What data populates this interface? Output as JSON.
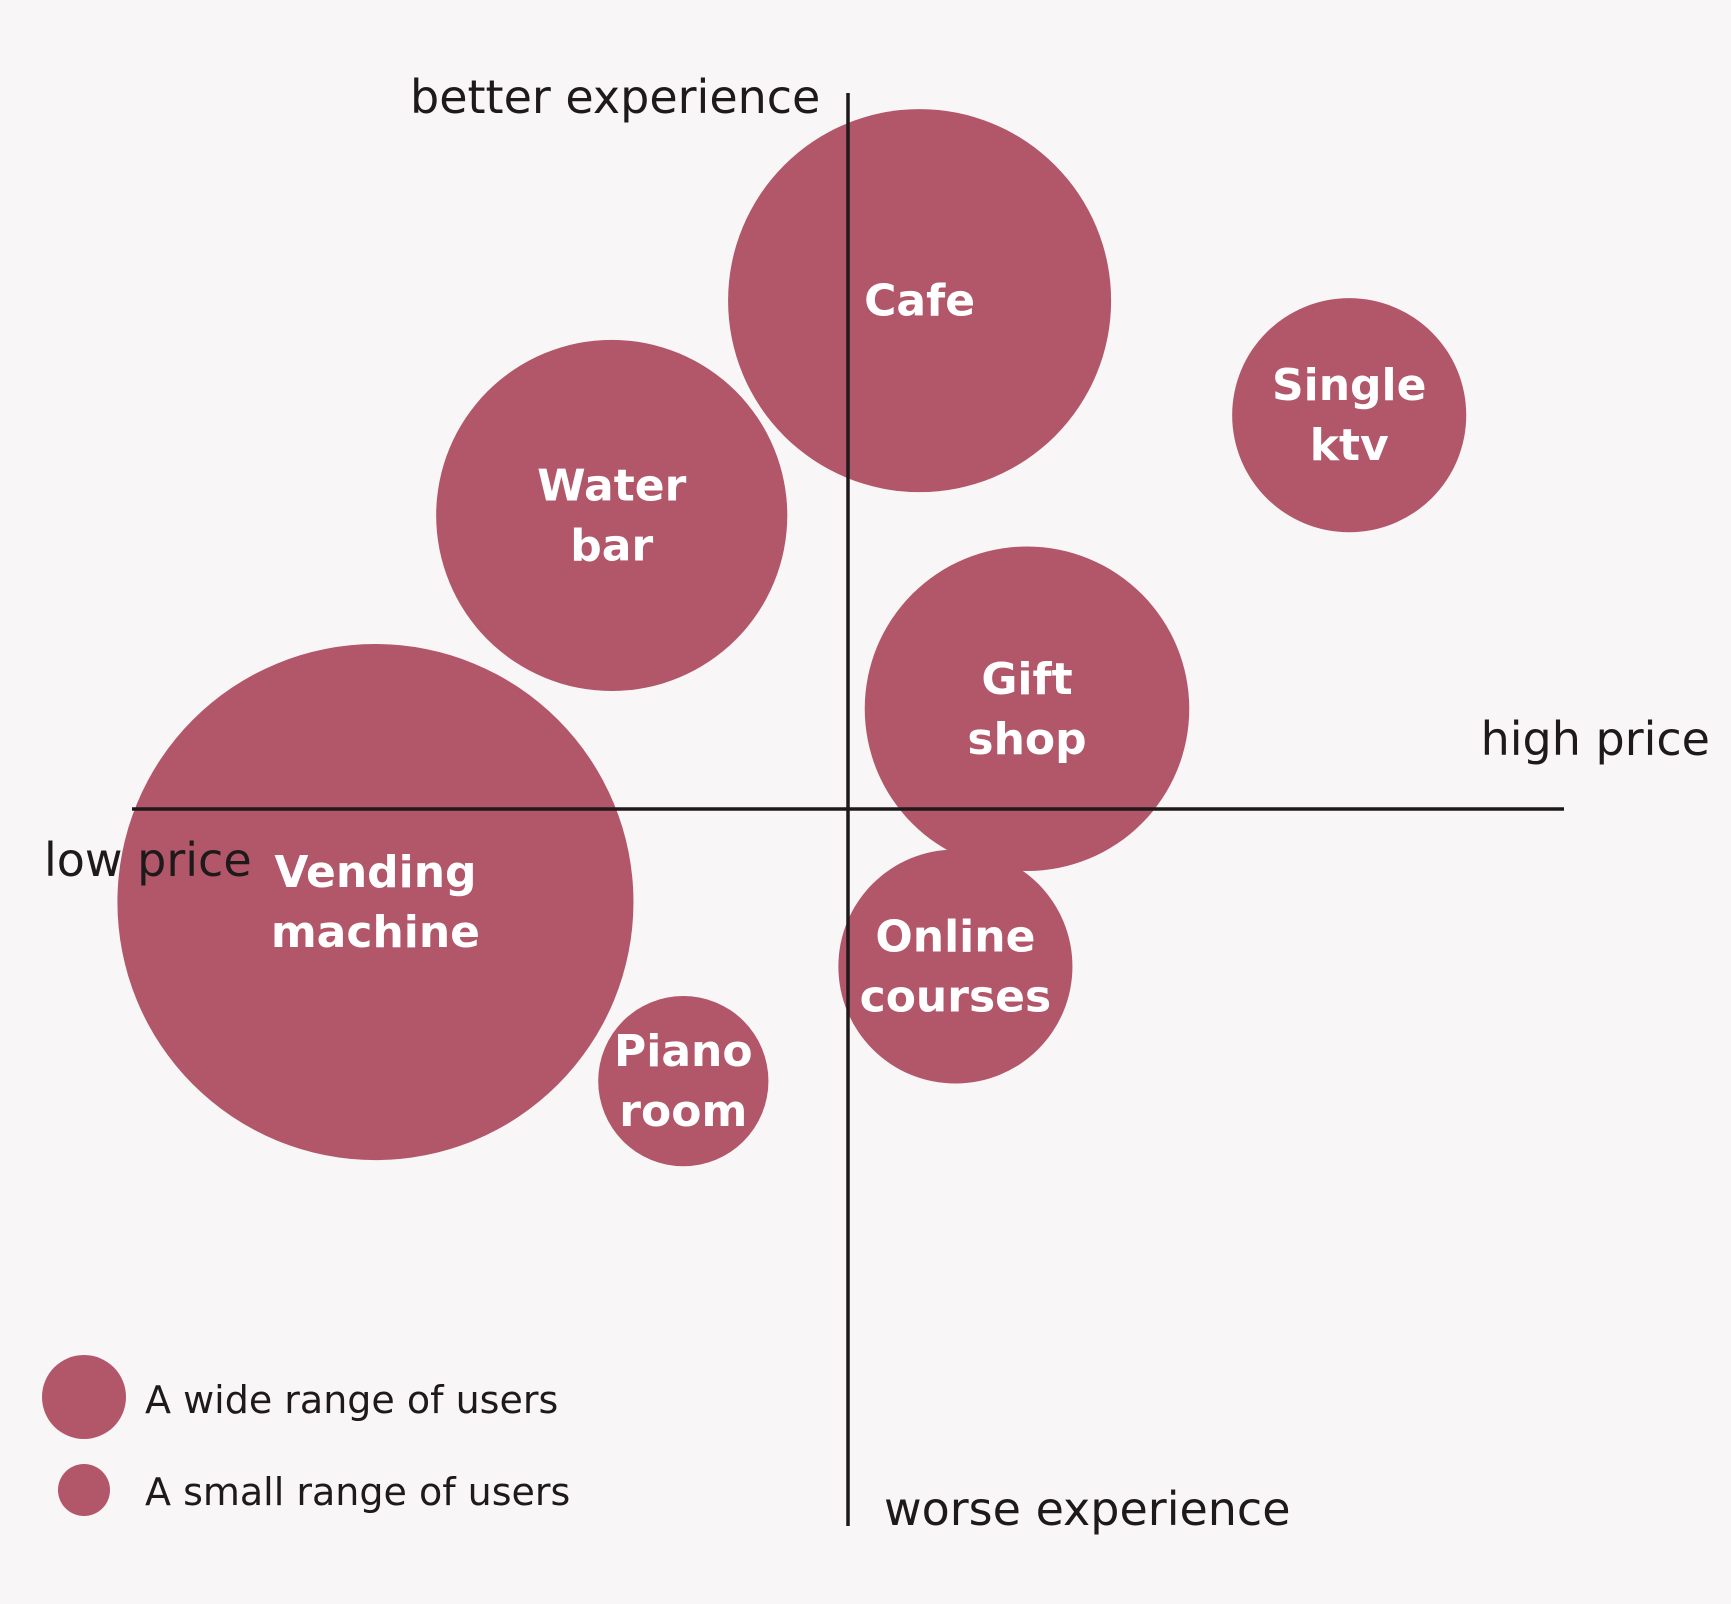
{
  "chart_data": {
    "type": "bubble",
    "x_axis": {
      "low_label": "low price",
      "high_label": "high price"
    },
    "y_axis": {
      "high_label": "better experience",
      "low_label": "worse experience"
    },
    "bubble_color": "#b25669",
    "points": [
      {
        "label": [
          "Cafe"
        ],
        "x": 0.1,
        "y": 0.71,
        "size": 0.72
      },
      {
        "label": [
          "Single",
          "ktv"
        ],
        "x": 0.7,
        "y": 0.55,
        "size": 0.44
      },
      {
        "label": [
          "Water",
          "bar"
        ],
        "x": -0.33,
        "y": 0.41,
        "size": 0.66
      },
      {
        "label": [
          "Gift",
          "shop"
        ],
        "x": 0.25,
        "y": 0.14,
        "size": 0.61
      },
      {
        "label": [
          "Vending",
          "machine"
        ],
        "x": -0.66,
        "y": -0.13,
        "size": 0.97
      },
      {
        "label": [
          "Online",
          "courses"
        ],
        "x": 0.15,
        "y": -0.22,
        "size": 0.44
      },
      {
        "label": [
          "Piano",
          "room"
        ],
        "x": -0.23,
        "y": -0.38,
        "size": 0.32
      }
    ],
    "legend": [
      {
        "label": "A wide range of users",
        "size": "wide"
      },
      {
        "label": "A small range of users",
        "size": "small"
      }
    ]
  }
}
